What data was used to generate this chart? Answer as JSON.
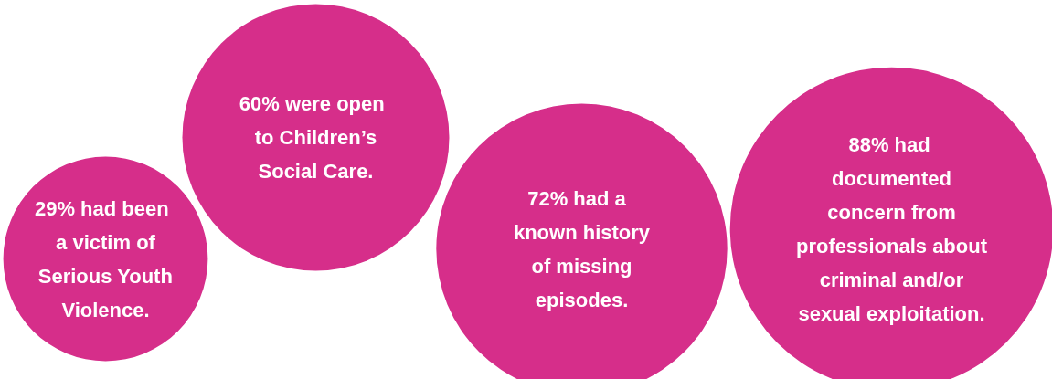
{
  "chart_data": {
    "type": "other",
    "categories": [
      "had been\na victim of\nSerious Youth\nViolence.",
      "were open\nto Children’s\nSocial Care.",
      "had a\nknown history\nof missing\nepisodes.",
      "had\ndocumented\nconcern from\nprofessionals about\ncriminal and/or\nsexual exploitation."
    ],
    "values": [
      29,
      60,
      72,
      88
    ],
    "value_labels": [
      "29%",
      "60%",
      "72%",
      "88%"
    ],
    "color": "#d62e8a"
  }
}
